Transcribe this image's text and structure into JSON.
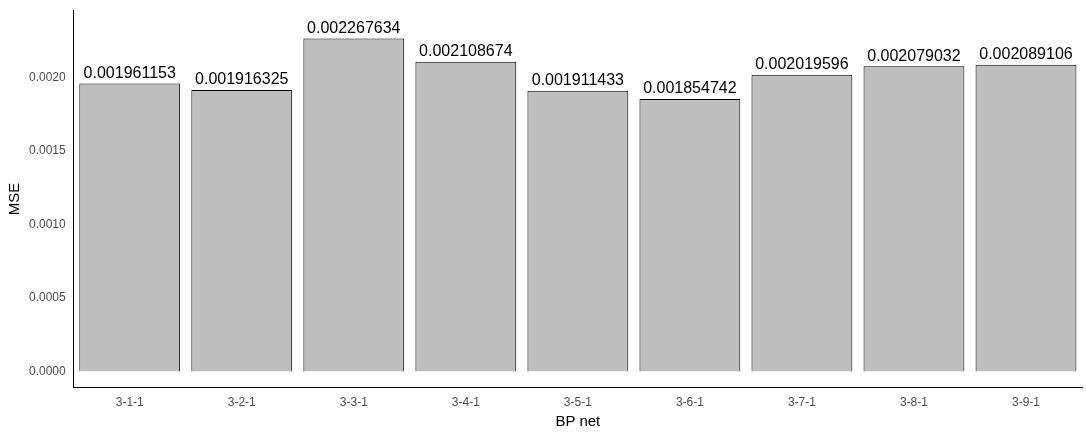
{
  "chart_data": {
    "type": "bar",
    "xlabel": "BP net",
    "ylabel": "MSE",
    "categories": [
      "3-1-1",
      "3-2-1",
      "3-3-1",
      "3-4-1",
      "3-5-1",
      "3-6-1",
      "3-7-1",
      "3-8-1",
      "3-9-1"
    ],
    "values": [
      0.001961153,
      0.001916325,
      0.002267634,
      0.002108674,
      0.001911433,
      0.001854742,
      0.002019596,
      0.002079032,
      0.002089106
    ],
    "color": "#bebebe",
    "ylim": [
      -0.00011,
      0.00246
    ],
    "yticks": [
      {
        "value": 0,
        "label": "0.0000"
      },
      {
        "value": 0.0005,
        "label": "0.0005"
      },
      {
        "value": 0.001,
        "label": "0.0010"
      },
      {
        "value": 0.0015,
        "label": "0.0015"
      },
      {
        "value": 0.002,
        "label": "0.0020"
      }
    ],
    "grid": false,
    "legend": false,
    "data_labels": true
  }
}
